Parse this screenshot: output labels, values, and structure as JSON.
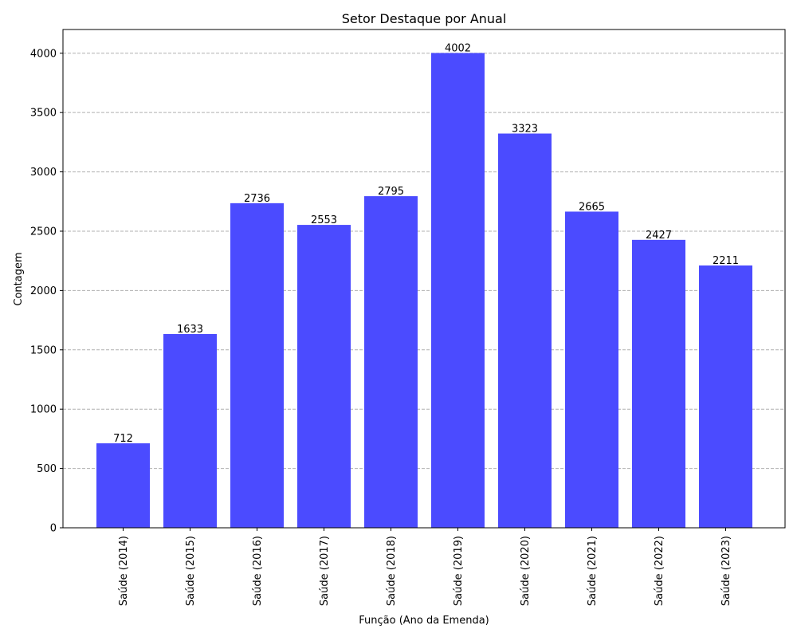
{
  "chart_data": {
    "type": "bar",
    "title": "Setor Destaque por Anual",
    "xlabel": "Função (Ano da Emenda)",
    "ylabel": "Contagem",
    "categories": [
      "Saúde (2014)",
      "Saúde (2015)",
      "Saúde (2016)",
      "Saúde (2017)",
      "Saúde (2018)",
      "Saúde (2019)",
      "Saúde (2020)",
      "Saúde (2021)",
      "Saúde (2022)",
      "Saúde (2023)"
    ],
    "values": [
      712,
      1633,
      2736,
      2553,
      2795,
      4002,
      3323,
      2665,
      2427,
      2211
    ],
    "ylim": [
      0,
      4200
    ],
    "yticks": [
      0,
      500,
      1000,
      1500,
      2000,
      2500,
      3000,
      3500,
      4000
    ],
    "grid": "y-dashed",
    "legend": "none",
    "bar_color": "#4b4bff",
    "grid_color": "#b0b0b0"
  }
}
